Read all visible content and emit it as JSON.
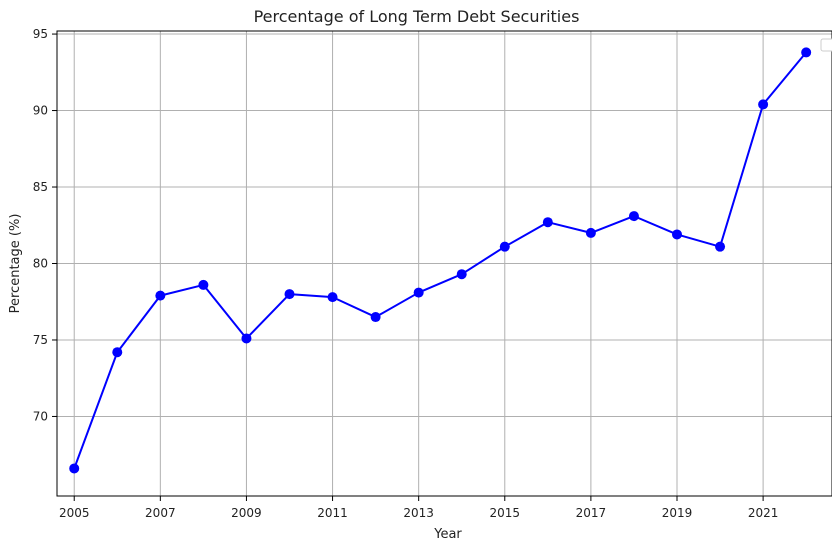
{
  "chart_data": {
    "type": "line",
    "title": "Percentage of Long Term Debt Securities",
    "xlabel": "Year",
    "ylabel": "Percentage (%)",
    "xlim": [
      2004.6,
      2022.6
    ],
    "ylim": [
      64.8,
      95.2
    ],
    "xticks": [
      "2005",
      "2007",
      "2009",
      "2011",
      "2013",
      "2015",
      "2017",
      "2019",
      "2021"
    ],
    "yticks": [
      "70",
      "75",
      "80",
      "85",
      "90",
      "95"
    ],
    "grid": true,
    "legend": "top-right (empty)",
    "series": [
      {
        "color": "#0000ff",
        "marker": "circle",
        "x": [
          2005,
          2006,
          2007,
          2008,
          2009,
          2010,
          2011,
          2012,
          2013,
          2014,
          2015,
          2016,
          2017,
          2018,
          2019,
          2020,
          2021,
          2022
        ],
        "y": [
          66.6,
          74.2,
          77.9,
          78.6,
          75.1,
          78.0,
          77.8,
          76.5,
          78.1,
          79.3,
          81.1,
          82.7,
          82.0,
          83.1,
          81.9,
          81.1,
          90.4,
          93.8
        ]
      }
    ]
  }
}
